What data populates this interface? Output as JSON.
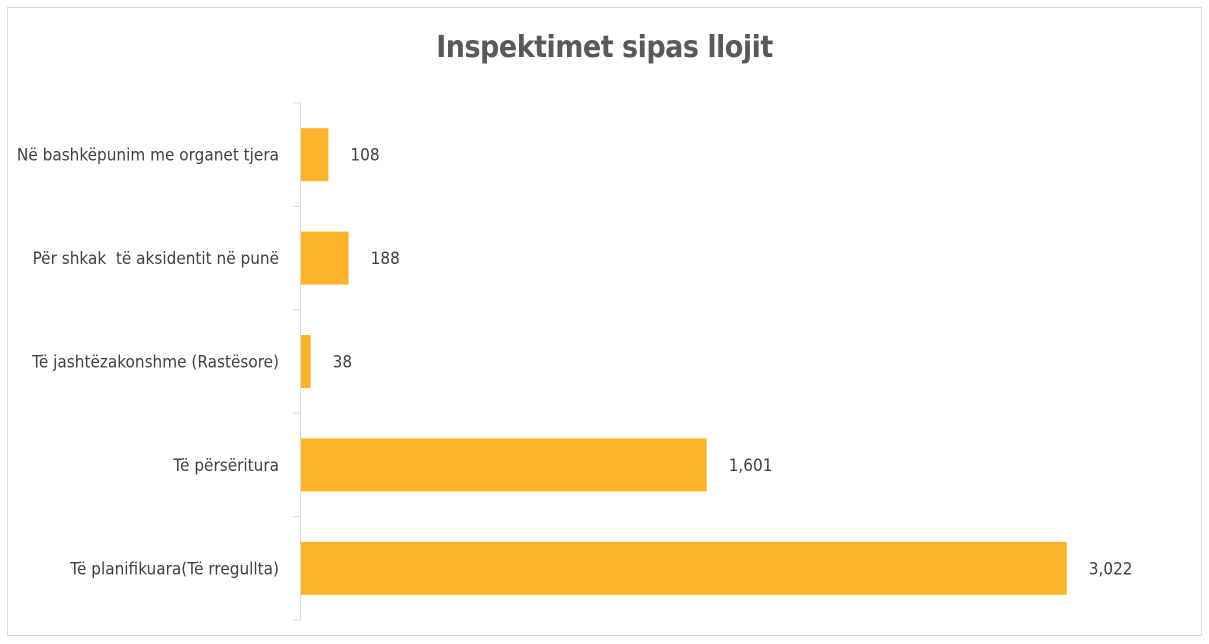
{
  "chart_data": {
    "type": "bar",
    "orientation": "horizontal",
    "title": "Inspektimet sipas llojit",
    "categories": [
      "Në bashkëpunim me organet tjera",
      "Për shkak  të aksidentit në punë",
      "Të jashtëzakonshme (Rastësore)",
      "Të përsëritura",
      "Të planifikuara(Të rregullta)"
    ],
    "values": [
      108,
      188,
      38,
      1601,
      3022
    ],
    "value_labels": [
      "108",
      "188",
      "38",
      "1,601",
      "3,022"
    ],
    "bar_color": "#FDB32A",
    "xlim": [
      0,
      3200
    ],
    "grid": false,
    "legend": "none"
  }
}
